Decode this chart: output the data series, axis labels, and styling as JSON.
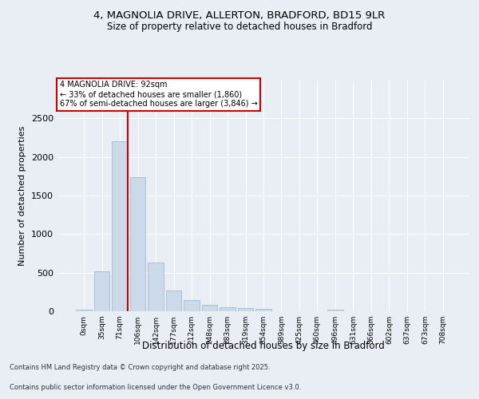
{
  "title_line1": "4, MAGNOLIA DRIVE, ALLERTON, BRADFORD, BD15 9LR",
  "title_line2": "Size of property relative to detached houses in Bradford",
  "xlabel": "Distribution of detached houses by size in Bradford",
  "ylabel": "Number of detached properties",
  "categories": [
    "0sqm",
    "35sqm",
    "71sqm",
    "106sqm",
    "142sqm",
    "177sqm",
    "212sqm",
    "248sqm",
    "283sqm",
    "319sqm",
    "354sqm",
    "389sqm",
    "425sqm",
    "460sqm",
    "496sqm",
    "531sqm",
    "566sqm",
    "602sqm",
    "637sqm",
    "673sqm",
    "708sqm"
  ],
  "values": [
    20,
    520,
    2200,
    1740,
    630,
    270,
    150,
    80,
    50,
    40,
    35,
    5,
    5,
    5,
    20,
    5,
    0,
    0,
    0,
    0,
    0
  ],
  "bar_color": "#ccd9e8",
  "bar_edge_color": "#99b3cc",
  "vline_color": "#cc0000",
  "annotation_text": "4 MAGNOLIA DRIVE: 92sqm\n← 33% of detached houses are smaller (1,860)\n67% of semi-detached houses are larger (3,846) →",
  "annotation_box_color": "#ffffff",
  "annotation_box_edge_color": "#cc0000",
  "ylim": [
    0,
    3000
  ],
  "yticks": [
    0,
    500,
    1000,
    1500,
    2000,
    2500
  ],
  "background_color": "#e8eef4",
  "plot_background_color": "#e8eef4",
  "footer_line1": "Contains HM Land Registry data © Crown copyright and database right 2025.",
  "footer_line2": "Contains public sector information licensed under the Open Government Licence v3.0."
}
